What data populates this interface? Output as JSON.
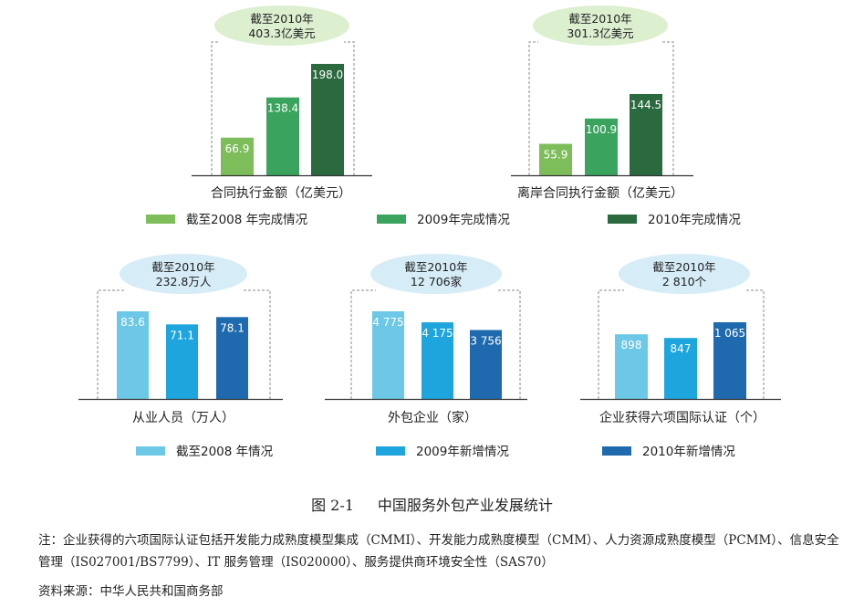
{
  "chart_data": [
    {
      "type": "bar",
      "label": "合同执行金额（亿美元）",
      "bubble": [
        "截至2010年",
        "403.3亿美元"
      ],
      "categories": [
        "截至2008年完成情况",
        "2009年完成情况",
        "2010年完成情况"
      ],
      "values": [
        66.9,
        138.4,
        198.0
      ],
      "value_labels": [
        "66.9",
        "138.4",
        "198.0"
      ],
      "colors": [
        "#7dbd5a",
        "#3aa35e",
        "#2b6a3f"
      ]
    },
    {
      "type": "bar",
      "label": "离岸合同执行金额（亿美元）",
      "bubble": [
        "截至2010年",
        "301.3亿美元"
      ],
      "categories": [
        "截至2008年完成情况",
        "2009年完成情况",
        "2010年完成情况"
      ],
      "values": [
        55.9,
        100.9,
        144.5
      ],
      "value_labels": [
        "55.9",
        "100.9",
        "144.5"
      ],
      "colors": [
        "#7dbd5a",
        "#3aa35e",
        "#2b6a3f"
      ]
    },
    {
      "type": "bar",
      "label": "从业人员（万人）",
      "bubble": [
        "截至2010年",
        "232.8万人"
      ],
      "categories": [
        "截至2008年情况",
        "2009年新增情况",
        "2010年新增情况"
      ],
      "values": [
        83.6,
        71.1,
        78.1
      ],
      "value_labels": [
        "83.6",
        "71.1",
        "78.1"
      ],
      "colors": [
        "#6cc8e6",
        "#1ea5dd",
        "#1f6aae"
      ]
    },
    {
      "type": "bar",
      "label": "外包企业（家）",
      "bubble": [
        "截至2010年",
        "12 706家"
      ],
      "categories": [
        "截至2008年情况",
        "2009年新增情况",
        "2010年新增情况"
      ],
      "values": [
        4775,
        4175,
        3756
      ],
      "value_labels": [
        "4 775",
        "4 175",
        "3 756"
      ],
      "colors": [
        "#6cc8e6",
        "#1ea5dd",
        "#1f6aae"
      ]
    },
    {
      "type": "bar",
      "label": "企业获得六项国际认证（个）",
      "bubble": [
        "截至2010年",
        "2 810个"
      ],
      "categories": [
        "截至2008年情况",
        "2009年新增情况",
        "2010年新增情况"
      ],
      "values": [
        898,
        847,
        1065
      ],
      "value_labels": [
        "898",
        "847",
        "1 065"
      ],
      "colors": [
        "#6cc8e6",
        "#1ea5dd",
        "#1f6aae"
      ]
    }
  ],
  "legends": {
    "green": [
      {
        "label": "截至2008 年完成情况",
        "color": "#7dbd5a"
      },
      {
        "label": "2009年完成情况",
        "color": "#3aa35e"
      },
      {
        "label": "2010年完成情况",
        "color": "#2b6a3f"
      }
    ],
    "blue": [
      {
        "label": "截至2008 年情况",
        "color": "#6cc8e6"
      },
      {
        "label": "2009年新增情况",
        "color": "#1ea5dd"
      },
      {
        "label": "2010年新增情况",
        "color": "#1f6aae"
      }
    ]
  },
  "bubble_color": "#dcefcf",
  "bubble_color_blue": "#d6ecf6",
  "caption": {
    "number": "图 2-1",
    "title": "中国服务外包产业发展统计"
  },
  "note": "注：企业获得的六项国际认证包括开发能力成熟度模型集成（CMMI）、开发能力成熟度模型（CMM）、人力资源成熟度模型（PCMM）、信息安全管理（IS027001/BS7799）、IT 服务管理（IS020000）、服务提供商环境安全性（SAS70）",
  "source": "资料来源：中华人民共和国商务部"
}
